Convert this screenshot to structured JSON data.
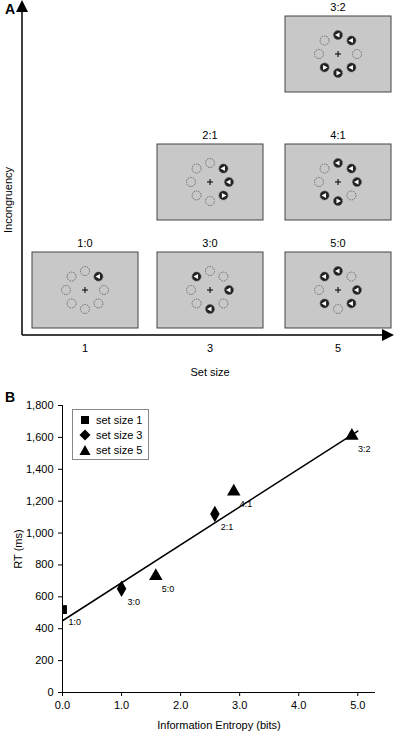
{
  "diagram": {
    "panel_label": "A",
    "y_axis_label": "Incongruency",
    "x_axis_label": "Set size",
    "x_ticks": [
      1,
      3,
      5
    ],
    "displays": [
      {
        "label": "1:0",
        "set_size": 1,
        "incongruent": 0
      },
      {
        "label": "3:0",
        "set_size": 3,
        "incongruent": 0
      },
      {
        "label": "5:0",
        "set_size": 5,
        "incongruent": 0
      },
      {
        "label": "2:1",
        "set_size": 3,
        "incongruent": 1
      },
      {
        "label": "4:1",
        "set_size": 5,
        "incongruent": 1
      },
      {
        "label": "3:2",
        "set_size": 5,
        "incongruent": 2
      }
    ]
  },
  "chart_data": {
    "type": "scatter",
    "panel_label": "B",
    "x_label": "Information Entropy (bits)",
    "y_label": "RT (ms)",
    "xlim": [
      0,
      5.3
    ],
    "xticks": [
      0,
      1,
      2,
      3,
      4,
      5
    ],
    "ylim": [
      0,
      1800
    ],
    "yticks": [
      0,
      200,
      400,
      600,
      800,
      1000,
      1200,
      1400,
      1600,
      1800
    ],
    "grid": false,
    "legend": "top-left",
    "color": "#000000",
    "series": [
      {
        "name": "set size 1",
        "marker": "square",
        "x": [
          0
        ],
        "values": [
          520
        ],
        "point_labels": [
          "1:0"
        ]
      },
      {
        "name": "set size 3",
        "marker": "diamond",
        "x": [
          1,
          2.58
        ],
        "values": [
          650,
          1120
        ],
        "point_labels": [
          "3:0",
          "2:1"
        ]
      },
      {
        "name": "set size 5",
        "marker": "triangle",
        "x": [
          1.58,
          2.9,
          4.9
        ],
        "values": [
          730,
          1260,
          1610
        ],
        "point_labels": [
          "5:0",
          "4:1",
          "3:2"
        ]
      }
    ],
    "trend_line": {
      "x": [
        0,
        5
      ],
      "values": [
        450,
        1640
      ]
    }
  }
}
